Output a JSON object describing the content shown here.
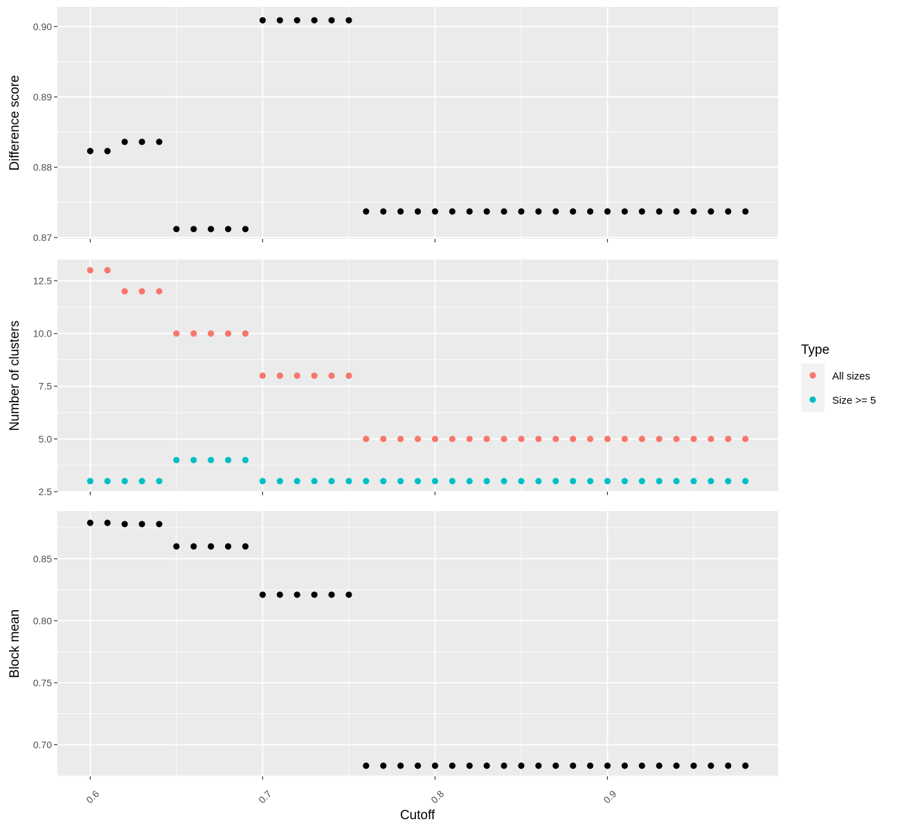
{
  "chart_data": {
    "type": "scatter",
    "xlabel": "Cutoff",
    "xlim": [
      0.581,
      0.999
    ],
    "xticks": [
      0.6,
      0.7,
      0.8,
      0.9
    ],
    "x_tick_labels": [
      "0.6",
      "0.7",
      "0.8",
      "0.9"
    ],
    "x": [
      0.6,
      0.61,
      0.62,
      0.63,
      0.64,
      0.65,
      0.66,
      0.67,
      0.68,
      0.69,
      0.7,
      0.71,
      0.72,
      0.73,
      0.74,
      0.75,
      0.76,
      0.77,
      0.78,
      0.79,
      0.8,
      0.81,
      0.82,
      0.83,
      0.84,
      0.85,
      0.86,
      0.87,
      0.88,
      0.89,
      0.9,
      0.91,
      0.92,
      0.93,
      0.94,
      0.95,
      0.96,
      0.97,
      0.98
    ],
    "grid": true,
    "legend": {
      "title": "Type",
      "position": "right",
      "entries": [
        {
          "label": "All sizes",
          "color": "#F8766D"
        },
        {
          "label": "Size >= 5",
          "color": "#00BFC4"
        }
      ]
    },
    "panels": [
      {
        "ylabel": "Difference score",
        "ylim": [
          0.8698,
          0.9028
        ],
        "yticks": [
          0.87,
          0.88,
          0.89,
          0.9
        ],
        "y_tick_labels": [
          "0.87",
          "0.88",
          "0.89",
          "0.90"
        ],
        "series": [
          {
            "color": "#000000",
            "values": [
              0.8823,
              0.8823,
              0.8836,
              0.8836,
              0.8836,
              0.8712,
              0.8712,
              0.8712,
              0.8712,
              0.8712,
              0.9009,
              0.9009,
              0.9009,
              0.9009,
              0.9009,
              0.9009,
              0.8737,
              0.8737,
              0.8737,
              0.8737,
              0.8737,
              0.8737,
              0.8737,
              0.8737,
              0.8737,
              0.8737,
              0.8737,
              0.8737,
              0.8737,
              0.8737,
              0.8737,
              0.8737,
              0.8737,
              0.8737,
              0.8737,
              0.8737,
              0.8737,
              0.8737,
              0.8737
            ]
          }
        ]
      },
      {
        "ylabel": "Number of clusters",
        "ylim": [
          2.5,
          13.5
        ],
        "yticks": [
          2.5,
          5.0,
          7.5,
          10.0,
          12.5
        ],
        "y_tick_labels": [
          "2.5",
          "5.0",
          "7.5",
          "10.0",
          "12.5"
        ],
        "series": [
          {
            "name": "All sizes",
            "color": "#F8766D",
            "values": [
              13,
              13,
              12,
              12,
              12,
              10,
              10,
              10,
              10,
              10,
              8,
              8,
              8,
              8,
              8,
              8,
              5,
              5,
              5,
              5,
              5,
              5,
              5,
              5,
              5,
              5,
              5,
              5,
              5,
              5,
              5,
              5,
              5,
              5,
              5,
              5,
              5,
              5,
              5
            ]
          },
          {
            "name": "Size >= 5",
            "color": "#00BFC4",
            "values": [
              3,
              3,
              3,
              3,
              3,
              4,
              4,
              4,
              4,
              4,
              3,
              3,
              3,
              3,
              3,
              3,
              3,
              3,
              3,
              3,
              3,
              3,
              3,
              3,
              3,
              3,
              3,
              3,
              3,
              3,
              3,
              3,
              3,
              3,
              3,
              3,
              3,
              3,
              3
            ]
          }
        ]
      },
      {
        "ylabel": "Block mean",
        "ylim": [
          0.6745,
          0.8885
        ],
        "yticks": [
          0.7,
          0.75,
          0.8,
          0.85
        ],
        "y_tick_labels": [
          "0.70",
          "0.75",
          "0.80",
          "0.85"
        ],
        "series": [
          {
            "color": "#000000",
            "values": [
              0.879,
              0.879,
              0.878,
              0.878,
              0.878,
              0.86,
              0.86,
              0.86,
              0.86,
              0.86,
              0.821,
              0.821,
              0.821,
              0.821,
              0.821,
              0.821,
              0.683,
              0.683,
              0.683,
              0.683,
              0.683,
              0.683,
              0.683,
              0.683,
              0.683,
              0.683,
              0.683,
              0.683,
              0.683,
              0.683,
              0.683,
              0.683,
              0.683,
              0.683,
              0.683,
              0.683,
              0.683,
              0.683,
              0.683
            ]
          }
        ]
      }
    ]
  }
}
